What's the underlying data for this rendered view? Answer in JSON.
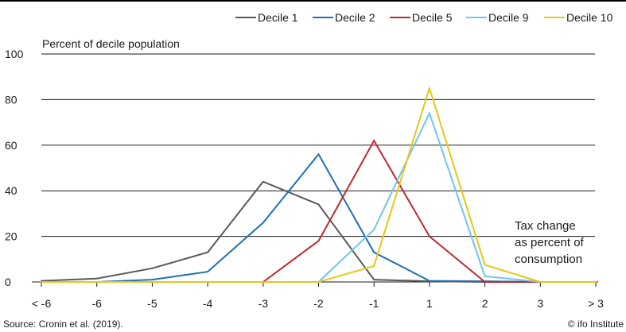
{
  "chart_data": {
    "type": "line",
    "ylabel": "Percent of decile population",
    "annotation": [
      "Tax change",
      "as percent of",
      "consumption"
    ],
    "categories": [
      "< -6",
      "-6",
      "-5",
      "-4",
      "-3",
      "-2",
      "-1",
      "1",
      "2",
      "3",
      "> 3"
    ],
    "ylim": [
      0,
      100
    ],
    "yticks": [
      0,
      20,
      40,
      60,
      80,
      100
    ],
    "grid": true,
    "legend_position": "top",
    "series": [
      {
        "name": "Decile 1",
        "color": "#595959",
        "values": [
          0.5,
          1.5,
          6,
          13,
          44,
          34,
          1,
          0.3,
          0,
          0,
          0
        ]
      },
      {
        "name": "Decile 2",
        "color": "#1f6fb2",
        "values": [
          0,
          0,
          1,
          4.5,
          26,
          56,
          13,
          0.5,
          0.3,
          0,
          0
        ]
      },
      {
        "name": "Decile 5",
        "color": "#c0272d",
        "values": [
          0,
          0,
          0,
          0,
          0,
          18,
          62,
          20,
          0,
          0,
          0
        ]
      },
      {
        "name": "Decile 9",
        "color": "#6ec6ea",
        "values": [
          0,
          0,
          0,
          0,
          0,
          0,
          23,
          74,
          2.5,
          0,
          0
        ]
      },
      {
        "name": "Decile 10",
        "color": "#e6c619",
        "values": [
          0,
          0,
          0,
          0,
          0,
          0,
          7,
          85,
          7.5,
          0,
          0
        ]
      }
    ]
  },
  "footer": {
    "source": "Source: Cronin et al. (2019).",
    "credit": "© ifo Institute"
  }
}
